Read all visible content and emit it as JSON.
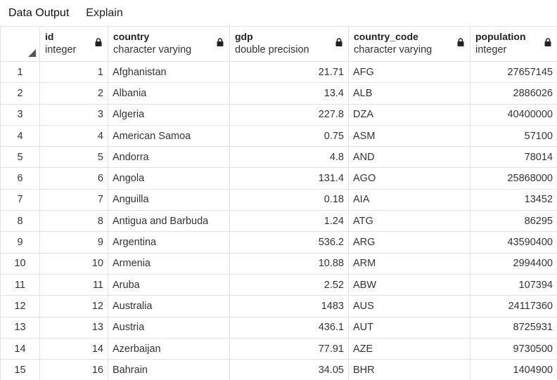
{
  "tabs": [
    {
      "label": "Data Output"
    },
    {
      "label": "Explain"
    }
  ],
  "columns": [
    {
      "name": "id",
      "type": "integer"
    },
    {
      "name": "country",
      "type": "character varying"
    },
    {
      "name": "gdp",
      "type": "double precision"
    },
    {
      "name": "country_code",
      "type": "character varying"
    },
    {
      "name": "population",
      "type": "integer"
    }
  ],
  "rows": [
    {
      "row": "1",
      "id": "1",
      "country": "Afghanistan",
      "gdp": "21.71",
      "country_code": "AFG",
      "population": "27657145"
    },
    {
      "row": "2",
      "id": "2",
      "country": "Albania",
      "gdp": "13.4",
      "country_code": "ALB",
      "population": "2886026"
    },
    {
      "row": "3",
      "id": "3",
      "country": "Algeria",
      "gdp": "227.8",
      "country_code": "DZA",
      "population": "40400000"
    },
    {
      "row": "4",
      "id": "4",
      "country": "American Samoa",
      "gdp": "0.75",
      "country_code": "ASM",
      "population": "57100"
    },
    {
      "row": "5",
      "id": "5",
      "country": "Andorra",
      "gdp": "4.8",
      "country_code": "AND",
      "population": "78014"
    },
    {
      "row": "6",
      "id": "6",
      "country": "Angola",
      "gdp": "131.4",
      "country_code": "AGO",
      "population": "25868000"
    },
    {
      "row": "7",
      "id": "7",
      "country": "Anguilla",
      "gdp": "0.18",
      "country_code": "AIA",
      "population": "13452"
    },
    {
      "row": "8",
      "id": "8",
      "country": "Antigua and Barbuda",
      "gdp": "1.24",
      "country_code": "ATG",
      "population": "86295"
    },
    {
      "row": "9",
      "id": "9",
      "country": "Argentina",
      "gdp": "536.2",
      "country_code": "ARG",
      "population": "43590400"
    },
    {
      "row": "10",
      "id": "10",
      "country": "Armenia",
      "gdp": "10.88",
      "country_code": "ARM",
      "population": "2994400"
    },
    {
      "row": "11",
      "id": "11",
      "country": "Aruba",
      "gdp": "2.52",
      "country_code": "ABW",
      "population": "107394"
    },
    {
      "row": "12",
      "id": "12",
      "country": "Australia",
      "gdp": "1483",
      "country_code": "AUS",
      "population": "24117360"
    },
    {
      "row": "13",
      "id": "13",
      "country": "Austria",
      "gdp": "436.1",
      "country_code": "AUT",
      "population": "8725931"
    },
    {
      "row": "14",
      "id": "14",
      "country": "Azerbaijan",
      "gdp": "77.91",
      "country_code": "AZE",
      "population": "9730500"
    },
    {
      "row": "15",
      "id": "16",
      "country": "Bahrain",
      "gdp": "34.05",
      "country_code": "BHR",
      "population": "1404900"
    }
  ],
  "icons": {
    "lock": "lock-icon",
    "select_all": "select-all-triangle-icon"
  },
  "colors": {
    "grid_border": "#dfe3e8",
    "lock": "#222222",
    "corner_triangle": "#555555"
  }
}
